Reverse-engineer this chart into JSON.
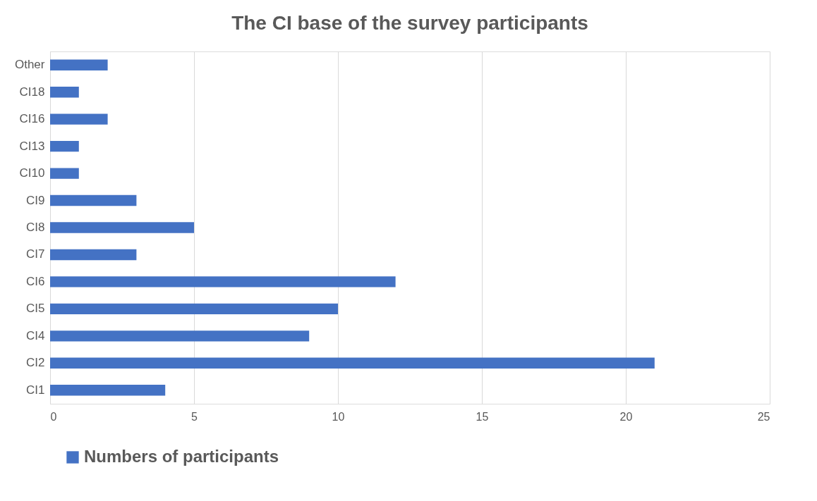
{
  "chart_data": {
    "type": "bar",
    "orientation": "horizontal",
    "title": "The CI base of the survey participants",
    "categories": [
      "Other",
      "CI18",
      "CI16",
      "CI13",
      "CI10",
      "CI9",
      "CI8",
      "CI7",
      "CI6",
      "CI5",
      "CI4",
      "CI2",
      "CI1"
    ],
    "series": [
      {
        "name": "Numbers of participants",
        "color": "#4472c4",
        "values": [
          2,
          1,
          2,
          1,
          1,
          3,
          5,
          3,
          12,
          10,
          9,
          21,
          4
        ]
      }
    ],
    "xlim": [
      0,
      25
    ],
    "xticks": [
      0,
      5,
      10,
      15,
      20,
      25
    ],
    "grid": "x",
    "legend": "bottom"
  }
}
